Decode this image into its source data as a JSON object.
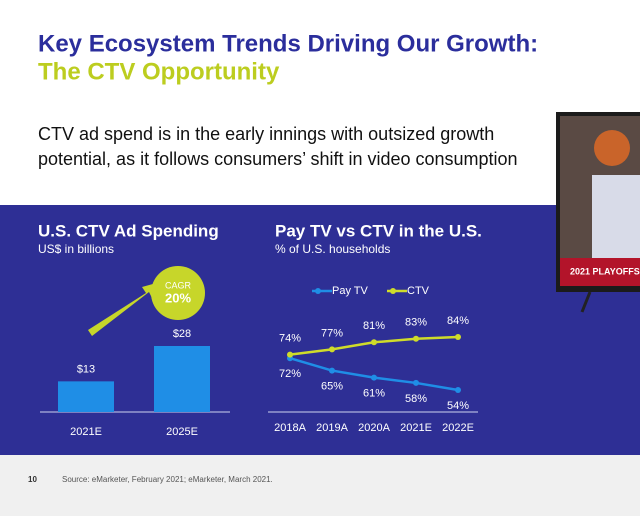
{
  "title_line1": "Key Ecosystem Trends Driving Our Growth:",
  "title_line2": "The CTV Opportunity",
  "body_line1": "CTV ad spend is in the early innings with outsized growth",
  "body_line2": "potential, as it follows consumers’ shift in video consumption",
  "tv_banner": "2021 PLAYOFFS",
  "page_number": "10",
  "source": "Source: eMarketer, February 2021; eMarketer, March 2021.",
  "chart_data": [
    {
      "type": "bar",
      "title": "U.S. CTV Ad Spending",
      "subtitle": "US$ in billions",
      "categories": [
        "2021E",
        "2025E"
      ],
      "values": [
        13,
        28
      ],
      "value_labels": [
        "$13",
        "$28"
      ],
      "color": "#1f8ee6",
      "annotation": {
        "label": "CAGR",
        "value": "20%"
      }
    },
    {
      "type": "line",
      "title": "Pay TV vs CTV in the U.S.",
      "subtitle": "% of U.S. households",
      "categories": [
        "2018A",
        "2019A",
        "2020A",
        "2021E",
        "2022E"
      ],
      "series": [
        {
          "name": "Pay TV",
          "color": "#1f8ee6",
          "values": [
            72,
            65,
            61,
            58,
            54
          ],
          "value_labels": [
            "72%",
            "65%",
            "61%",
            "58%",
            "54%"
          ]
        },
        {
          "name": "CTV",
          "color": "#cfdc2a",
          "values": [
            74,
            77,
            81,
            83,
            84
          ],
          "value_labels": [
            "74%",
            "77%",
            "81%",
            "83%",
            "84%"
          ]
        }
      ]
    }
  ]
}
